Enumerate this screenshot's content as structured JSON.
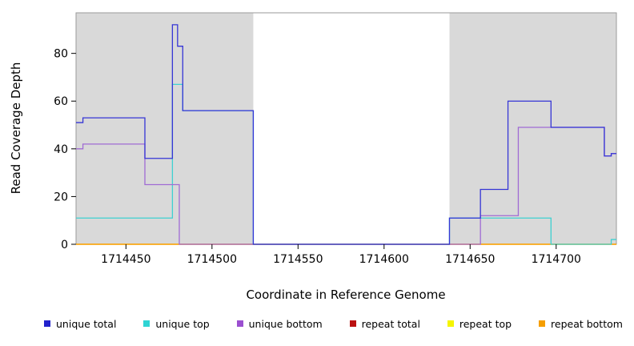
{
  "chart": {
    "ylabel": "Read Coverage Depth",
    "xlabel": "Coordinate in Reference Genome"
  },
  "chart_data": {
    "type": "line",
    "step": true,
    "title": "",
    "xlabel": "Coordinate in Reference Genome",
    "ylabel": "Read Coverage Depth",
    "xlim": [
      1714421,
      1714735
    ],
    "ylim": [
      0,
      97
    ],
    "xticks": [
      1714450,
      1714500,
      1714550,
      1714600,
      1714650,
      1714700
    ],
    "yticks": [
      0,
      20,
      40,
      60,
      80
    ],
    "grid": false,
    "shade_color": "#d9d9d9",
    "shaded_regions": [
      [
        1714421,
        1714524
      ],
      [
        1714638,
        1714735
      ]
    ],
    "series": [
      {
        "name": "repeat total",
        "color": "#cc0000",
        "points": [
          [
            1714421,
            0
          ]
        ]
      },
      {
        "name": "repeat top",
        "color": "#ffff00",
        "points": [
          [
            1714421,
            0
          ]
        ]
      },
      {
        "name": "repeat bottom",
        "color": "#ffa500",
        "points": [
          [
            1714421,
            0
          ]
        ]
      },
      {
        "name": "unique top",
        "color": "#3fd1d1",
        "points": [
          [
            1714421,
            11
          ],
          [
            1714477,
            67
          ],
          [
            1714483,
            56
          ],
          [
            1714524,
            0
          ],
          [
            1714638,
            11
          ],
          [
            1714697,
            0
          ],
          [
            1714732,
            2
          ]
        ]
      },
      {
        "name": "unique bottom",
        "color": "#a06bd4",
        "points": [
          [
            1714421,
            40
          ],
          [
            1714425,
            42
          ],
          [
            1714461,
            25
          ],
          [
            1714481,
            0
          ],
          [
            1714656,
            12
          ],
          [
            1714678,
            49
          ],
          [
            1714728,
            37
          ],
          [
            1714732,
            38
          ]
        ]
      },
      {
        "name": "unique total",
        "color": "#3535d6",
        "points": [
          [
            1714421,
            51
          ],
          [
            1714425,
            53
          ],
          [
            1714461,
            36
          ],
          [
            1714477,
            92
          ],
          [
            1714480,
            83
          ],
          [
            1714483,
            56
          ],
          [
            1714524,
            0
          ],
          [
            1714638,
            11
          ],
          [
            1714656,
            23
          ],
          [
            1714672,
            60
          ],
          [
            1714697,
            49
          ],
          [
            1714728,
            37
          ],
          [
            1714732,
            38
          ]
        ]
      }
    ],
    "legend_position": "bottom",
    "legend": [
      {
        "label": "unique total",
        "color": "#2222cc"
      },
      {
        "label": "unique top",
        "color": "#2fd4d4"
      },
      {
        "label": "unique bottom",
        "color": "#9b4fd0"
      },
      {
        "label": "repeat total",
        "color": "#bb1111"
      },
      {
        "label": "repeat top",
        "color": "#f5f500"
      },
      {
        "label": "repeat bottom",
        "color": "#f59e00"
      }
    ]
  }
}
